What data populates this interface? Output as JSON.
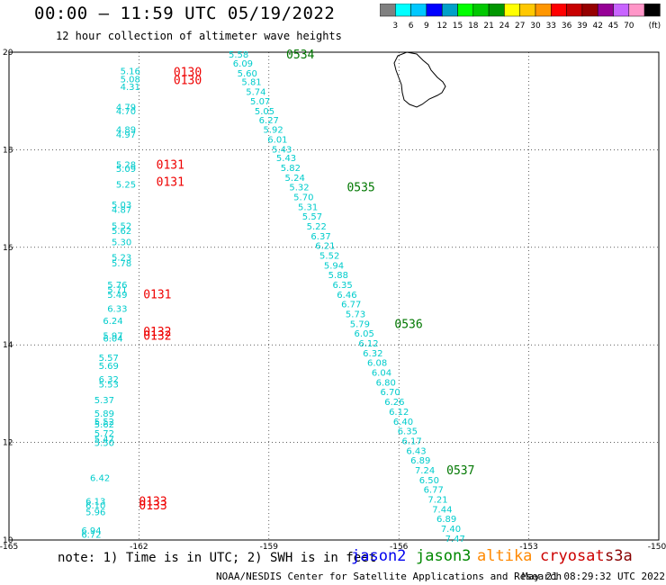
{
  "header": {
    "title": "00:00 – 11:59 UTC 05/19/2022",
    "subtitle": "12 hour collection of altimeter wave heights"
  },
  "colorbar": {
    "ticks": [
      "3",
      "6",
      "9",
      "12",
      "15",
      "18",
      "21",
      "24",
      "27",
      "30",
      "33",
      "36",
      "39",
      "42",
      "45",
      "70"
    ],
    "unit": "(ft)",
    "colors": [
      "#808080",
      "#00ffff",
      "#00c8ff",
      "#0000ff",
      "#00a0c8",
      "#00ff00",
      "#00c800",
      "#009600",
      "#ffff00",
      "#ffc800",
      "#ff9600",
      "#ff0000",
      "#c80000",
      "#960000",
      "#960096",
      "#c864ff",
      "#ff96c8",
      "#000000"
    ]
  },
  "axes": {
    "x_ticks": [
      "-165",
      "-162",
      "-159",
      "-156",
      "-153",
      "-150"
    ],
    "y_ticks": [
      "20",
      "18",
      "16",
      "14",
      "12",
      "10"
    ],
    "lon_range": [
      -165,
      -150
    ],
    "lat_range": [
      10,
      20
    ]
  },
  "tracks": {
    "west": {
      "color": "#00cccc",
      "points": [
        {
          "t": "5.16",
          "lon": -162.2,
          "lat": 19.62
        },
        {
          "t": "5.08",
          "lon": -162.2,
          "lat": 19.46
        },
        {
          "t": "4.31",
          "lon": -162.2,
          "lat": 19.3
        },
        {
          "t": "4.79",
          "lon": -162.3,
          "lat": 18.88
        },
        {
          "t": "4.70",
          "lon": -162.3,
          "lat": 18.8
        },
        {
          "t": "4.89",
          "lon": -162.3,
          "lat": 18.42
        },
        {
          "t": "4.97",
          "lon": -162.3,
          "lat": 18.32
        },
        {
          "t": "5.28",
          "lon": -162.3,
          "lat": 17.7
        },
        {
          "t": "5.09",
          "lon": -162.3,
          "lat": 17.62
        },
        {
          "t": "5.25",
          "lon": -162.3,
          "lat": 17.3
        },
        {
          "t": "5.03",
          "lon": -162.4,
          "lat": 16.88
        },
        {
          "t": "4.87",
          "lon": -162.4,
          "lat": 16.78
        },
        {
          "t": "5.52",
          "lon": -162.4,
          "lat": 16.45
        },
        {
          "t": "5.62",
          "lon": -162.4,
          "lat": 16.35
        },
        {
          "t": "5.30",
          "lon": -162.4,
          "lat": 16.12
        },
        {
          "t": "5.23",
          "lon": -162.4,
          "lat": 15.8
        },
        {
          "t": "5.78",
          "lon": -162.4,
          "lat": 15.68
        },
        {
          "t": "5.76",
          "lon": -162.5,
          "lat": 15.24
        },
        {
          "t": "5.71",
          "lon": -162.5,
          "lat": 15.14
        },
        {
          "t": "5.49",
          "lon": -162.5,
          "lat": 15.04
        },
        {
          "t": "6.33",
          "lon": -162.5,
          "lat": 14.75
        },
        {
          "t": "6.24",
          "lon": -162.6,
          "lat": 14.5
        },
        {
          "t": "5.97",
          "lon": -162.6,
          "lat": 14.2
        },
        {
          "t": "6.04",
          "lon": -162.6,
          "lat": 14.14
        },
        {
          "t": "5.57",
          "lon": -162.7,
          "lat": 13.75
        },
        {
          "t": "5.69",
          "lon": -162.7,
          "lat": 13.58
        },
        {
          "t": "6.32",
          "lon": -162.7,
          "lat": 13.3
        },
        {
          "t": "5.53",
          "lon": -162.7,
          "lat": 13.2
        },
        {
          "t": "5.37",
          "lon": -162.8,
          "lat": 12.88
        },
        {
          "t": "5.89",
          "lon": -162.8,
          "lat": 12.6
        },
        {
          "t": "5.52",
          "lon": -162.8,
          "lat": 12.44
        },
        {
          "t": "5.62",
          "lon": -162.8,
          "lat": 12.38
        },
        {
          "t": "5.72",
          "lon": -162.8,
          "lat": 12.2
        },
        {
          "t": "5.47",
          "lon": -162.8,
          "lat": 12.08
        },
        {
          "t": "5.50",
          "lon": -162.8,
          "lat": 12.0
        },
        {
          "t": "6.42",
          "lon": -162.9,
          "lat": 11.28
        },
        {
          "t": "6.13",
          "lon": -163.0,
          "lat": 10.8
        },
        {
          "t": "6.10",
          "lon": -163.0,
          "lat": 10.72
        },
        {
          "t": "5.96",
          "lon": -163.0,
          "lat": 10.58
        },
        {
          "t": "6.94",
          "lon": -163.1,
          "lat": 10.2
        },
        {
          "t": "6.72",
          "lon": -163.1,
          "lat": 10.12
        }
      ],
      "time_labels": [
        {
          "t": "0130",
          "lon": -161.2,
          "lat": 19.6
        },
        {
          "t": "0130",
          "lon": -161.2,
          "lat": 19.44
        },
        {
          "t": "0131",
          "lon": -161.6,
          "lat": 17.7
        },
        {
          "t": "0131",
          "lon": -161.6,
          "lat": 17.35
        },
        {
          "t": "0131",
          "lon": -161.9,
          "lat": 15.05
        },
        {
          "t": "0132",
          "lon": -161.9,
          "lat": 14.28
        },
        {
          "t": "0132",
          "lon": -161.9,
          "lat": 14.2
        },
        {
          "t": "0133",
          "lon": -162.0,
          "lat": 10.8
        },
        {
          "t": "0133",
          "lon": -162.0,
          "lat": 10.72
        }
      ]
    },
    "east": {
      "color": "#00cccc",
      "points": [
        {
          "t": "5.58",
          "lon": -159.7,
          "lat": 19.96
        },
        {
          "t": "6.09",
          "lon": -159.6,
          "lat": 19.78
        },
        {
          "t": "5.60",
          "lon": -159.5,
          "lat": 19.58
        },
        {
          "t": "5.81",
          "lon": -159.4,
          "lat": 19.4
        },
        {
          "t": "5.74",
          "lon": -159.3,
          "lat": 19.2
        },
        {
          "t": "5.07",
          "lon": -159.2,
          "lat": 19.0
        },
        {
          "t": "5.05",
          "lon": -159.1,
          "lat": 18.8
        },
        {
          "t": "6.27",
          "lon": -159.0,
          "lat": 18.62
        },
        {
          "t": "5.92",
          "lon": -158.9,
          "lat": 18.42
        },
        {
          "t": "6.01",
          "lon": -158.8,
          "lat": 18.22
        },
        {
          "t": "5.43",
          "lon": -158.7,
          "lat": 18.02
        },
        {
          "t": "5.43",
          "lon": -158.6,
          "lat": 17.84
        },
        {
          "t": "5.82",
          "lon": -158.5,
          "lat": 17.64
        },
        {
          "t": "5.24",
          "lon": -158.4,
          "lat": 17.44
        },
        {
          "t": "5.32",
          "lon": -158.3,
          "lat": 17.24
        },
        {
          "t": "5.70",
          "lon": -158.2,
          "lat": 17.04
        },
        {
          "t": "5.31",
          "lon": -158.1,
          "lat": 16.84
        },
        {
          "t": "5.57",
          "lon": -158.0,
          "lat": 16.64
        },
        {
          "t": "5.22",
          "lon": -157.9,
          "lat": 16.44
        },
        {
          "t": "6.37",
          "lon": -157.8,
          "lat": 16.24
        },
        {
          "t": "6.21",
          "lon": -157.7,
          "lat": 16.04
        },
        {
          "t": "5.52",
          "lon": -157.6,
          "lat": 15.84
        },
        {
          "t": "5.94",
          "lon": -157.5,
          "lat": 15.64
        },
        {
          "t": "5.88",
          "lon": -157.4,
          "lat": 15.44
        },
        {
          "t": "6.35",
          "lon": -157.3,
          "lat": 15.24
        },
        {
          "t": "6.46",
          "lon": -157.2,
          "lat": 15.04
        },
        {
          "t": "6.77",
          "lon": -157.1,
          "lat": 14.84
        },
        {
          "t": "5.73",
          "lon": -157.0,
          "lat": 14.64
        },
        {
          "t": "5.79",
          "lon": -156.9,
          "lat": 14.44
        },
        {
          "t": "6.05",
          "lon": -156.8,
          "lat": 14.24
        },
        {
          "t": "6.12",
          "lon": -156.7,
          "lat": 14.04
        },
        {
          "t": "6.32",
          "lon": -156.6,
          "lat": 13.84
        },
        {
          "t": "6.08",
          "lon": -156.5,
          "lat": 13.64
        },
        {
          "t": "6.04",
          "lon": -156.4,
          "lat": 13.44
        },
        {
          "t": "6.80",
          "lon": -156.3,
          "lat": 13.24
        },
        {
          "t": "6.70",
          "lon": -156.2,
          "lat": 13.04
        },
        {
          "t": "6.26",
          "lon": -156.1,
          "lat": 12.84
        },
        {
          "t": "6.12",
          "lon": -156.0,
          "lat": 12.64
        },
        {
          "t": "6.40",
          "lon": -155.9,
          "lat": 12.44
        },
        {
          "t": "6.35",
          "lon": -155.8,
          "lat": 12.24
        },
        {
          "t": "6.17",
          "lon": -155.7,
          "lat": 12.04
        },
        {
          "t": "6.43",
          "lon": -155.6,
          "lat": 11.84
        },
        {
          "t": "6.89",
          "lon": -155.5,
          "lat": 11.64
        },
        {
          "t": "7.24",
          "lon": -155.4,
          "lat": 11.44
        },
        {
          "t": "6.50",
          "lon": -155.3,
          "lat": 11.24
        },
        {
          "t": "6.77",
          "lon": -155.2,
          "lat": 11.04
        },
        {
          "t": "7.21",
          "lon": -155.1,
          "lat": 10.84
        },
        {
          "t": "7.44",
          "lon": -155.0,
          "lat": 10.64
        },
        {
          "t": "6.89",
          "lon": -154.9,
          "lat": 10.44
        },
        {
          "t": "7.40",
          "lon": -154.8,
          "lat": 10.24
        },
        {
          "t": "7.47",
          "lon": -154.7,
          "lat": 10.04
        }
      ],
      "time_labels": [
        {
          "t": "0534",
          "lon": -158.6,
          "lat": 19.96
        },
        {
          "t": "0535",
          "lon": -157.2,
          "lat": 17.24
        },
        {
          "t": "0536",
          "lon": -156.1,
          "lat": 14.44
        },
        {
          "t": "0537",
          "lon": -154.9,
          "lat": 11.44
        }
      ]
    },
    "time_label_colors": {
      "west": "#ee0000",
      "east": "#007700"
    }
  },
  "footer": {
    "note": "note: 1) Time is in UTC; 2) SWH is in feet",
    "satellites": [
      {
        "name": "jason2",
        "color": "#0000ee"
      },
      {
        "name": "jason3",
        "color": "#008800"
      },
      {
        "name": "altika",
        "color": "#ff8800"
      },
      {
        "name": "cryosat",
        "color": "#cc0000"
      },
      {
        "name": "s3a",
        "color": "#880000"
      }
    ],
    "credit": "NOAA/NESDIS Center for Satellite Applications and Research",
    "timestamp": "May 21 08:29:32 UTC 2022"
  }
}
